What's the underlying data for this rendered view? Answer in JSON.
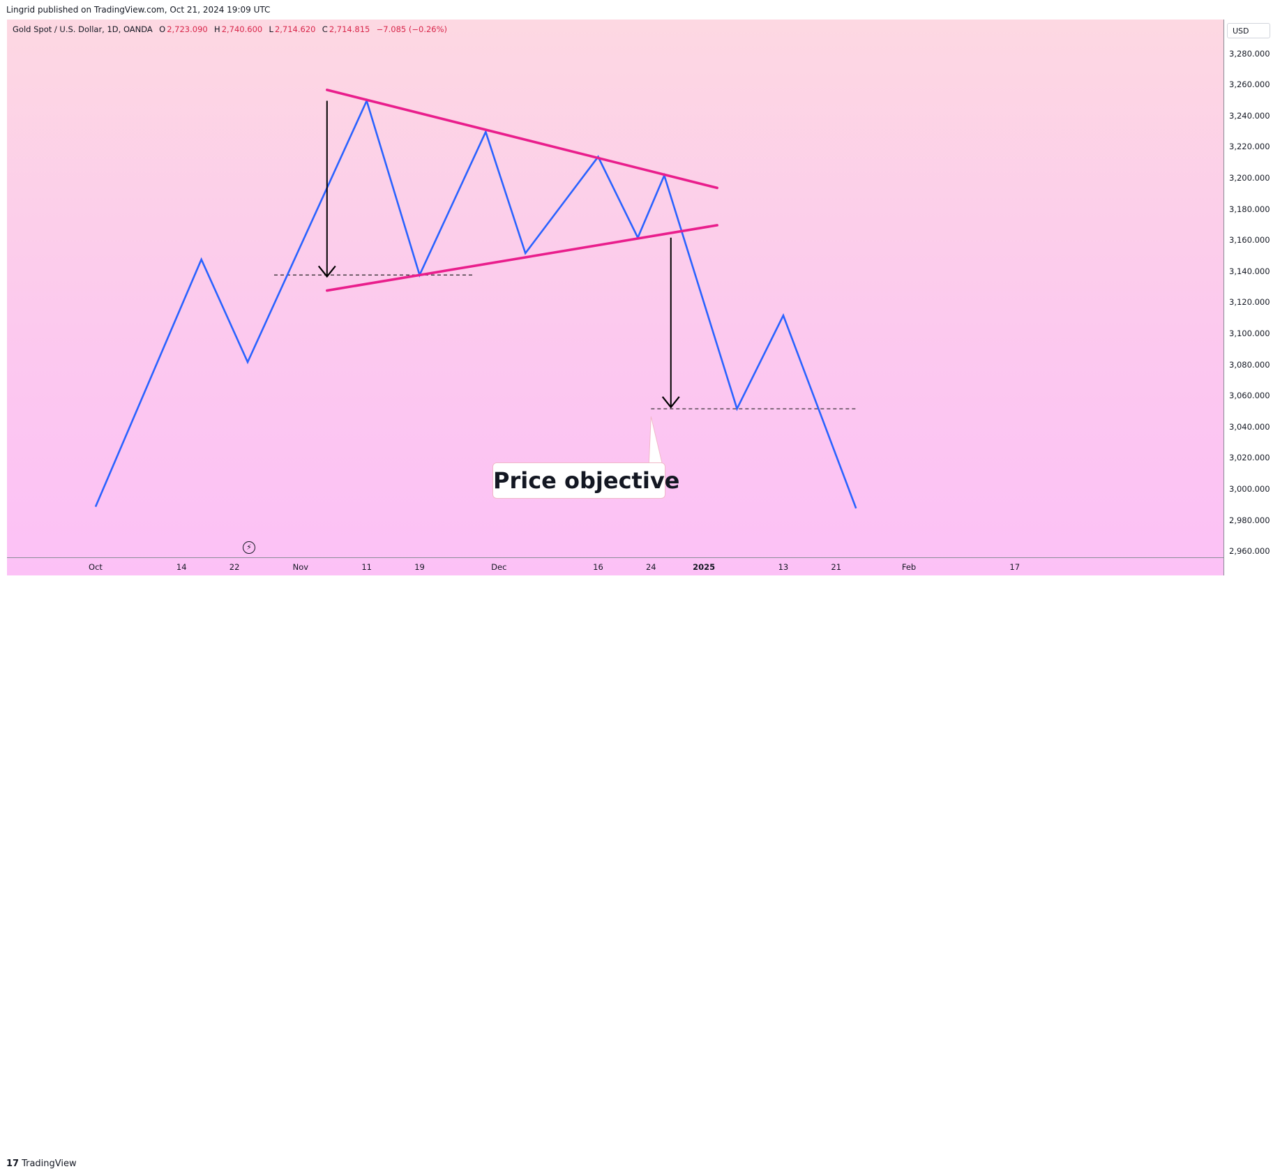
{
  "header": {
    "publish_line": "Lingrid published on TradingView.com, Oct 21, 2024 19:09 UTC"
  },
  "legend": {
    "symbol": "Gold Spot / U.S. Dollar, 1D, OANDA",
    "open_label": "O",
    "open": "2,723.090",
    "high_label": "H",
    "high": "2,740.600",
    "low_label": "L",
    "low": "2,714.620",
    "close_label": "C",
    "close": "2,714.815",
    "change": "−7.085 (−0.26%)"
  },
  "scale": {
    "currency_button": "USD"
  },
  "annotation": {
    "text": "Price objective"
  },
  "footer": {
    "logo_mark": "17",
    "logo_text": "TradingView"
  },
  "colors": {
    "price_line": "#2962ff",
    "triangle": "#e91e8c",
    "arrow": "#000000",
    "negative": "#d8264a",
    "background_top": "#fdd8e2",
    "background_bottom": "#fcc1f6"
  },
  "icons": {
    "flash": "lightning-icon",
    "logo": "tradingview-logo-icon"
  },
  "chart_data": {
    "type": "line",
    "title": "Gold Spot / U.S. Dollar, 1D, OANDA",
    "ylim": [
      2950,
      3290
    ],
    "y_ticks": [
      "2,960.000",
      "2,980.000",
      "3,000.000",
      "3,020.000",
      "3,040.000",
      "3,060.000",
      "3,080.000",
      "3,100.000",
      "3,120.000",
      "3,140.000",
      "3,160.000",
      "3,180.000",
      "3,200.000",
      "3,220.000",
      "3,240.000",
      "3,260.000",
      "3,280.000"
    ],
    "y_tick_values": [
      2960,
      2980,
      3000,
      3020,
      3040,
      3060,
      3080,
      3100,
      3120,
      3140,
      3160,
      3180,
      3200,
      3220,
      3240,
      3260,
      3280
    ],
    "x_ticks": [
      {
        "label": "Oct",
        "day": 0,
        "bold": false
      },
      {
        "label": "14",
        "day": 13,
        "bold": false
      },
      {
        "label": "22",
        "day": 21,
        "bold": false
      },
      {
        "label": "Nov",
        "day": 31,
        "bold": false
      },
      {
        "label": "11",
        "day": 41,
        "bold": false
      },
      {
        "label": "19",
        "day": 49,
        "bold": false
      },
      {
        "label": "Dec",
        "day": 61,
        "bold": false
      },
      {
        "label": "16",
        "day": 76,
        "bold": false
      },
      {
        "label": "24",
        "day": 84,
        "bold": false
      },
      {
        "label": "2025",
        "day": 92,
        "bold": true
      },
      {
        "label": "13",
        "day": 104,
        "bold": false
      },
      {
        "label": "21",
        "day": 112,
        "bold": false
      },
      {
        "label": "Feb",
        "day": 123,
        "bold": false
      },
      {
        "label": "17",
        "day": 139,
        "bold": false
      }
    ],
    "series": [
      {
        "name": "",
        "points": [
          {
            "x": 0,
            "y": 2989
          },
          {
            "x": 16,
            "y": 3148
          },
          {
            "x": 23,
            "y": 3082
          },
          {
            "x": 41,
            "y": 3250
          },
          {
            "x": 49,
            "y": 3138
          },
          {
            "x": 59,
            "y": 3230
          },
          {
            "x": 65,
            "y": 3152
          },
          {
            "x": 76,
            "y": 3214
          },
          {
            "x": 82,
            "y": 3162
          },
          {
            "x": 86,
            "y": 3202
          },
          {
            "x": 97,
            "y": 3052
          },
          {
            "x": 104,
            "y": 3112
          },
          {
            "x": 115,
            "y": 2988
          }
        ]
      }
    ],
    "trendlines": [
      {
        "name": "upper",
        "from": {
          "x": 35,
          "y": 3257
        },
        "to": {
          "x": 94,
          "y": 3194
        }
      },
      {
        "name": "lower",
        "from": {
          "x": 35,
          "y": 3128
        },
        "to": {
          "x": 94,
          "y": 3170
        }
      }
    ],
    "levels": [
      {
        "x_from": 27,
        "x_to": 57,
        "y": 3138
      },
      {
        "x_from": 84,
        "x_to": 115,
        "y": 3052
      }
    ],
    "arrows": [
      {
        "x": 35,
        "y_from": 3250,
        "y_to": 3137
      },
      {
        "x": 87,
        "y_from": 3162,
        "y_to": 3053
      }
    ],
    "callout_anchor": {
      "x": 84,
      "y": 3047
    }
  }
}
